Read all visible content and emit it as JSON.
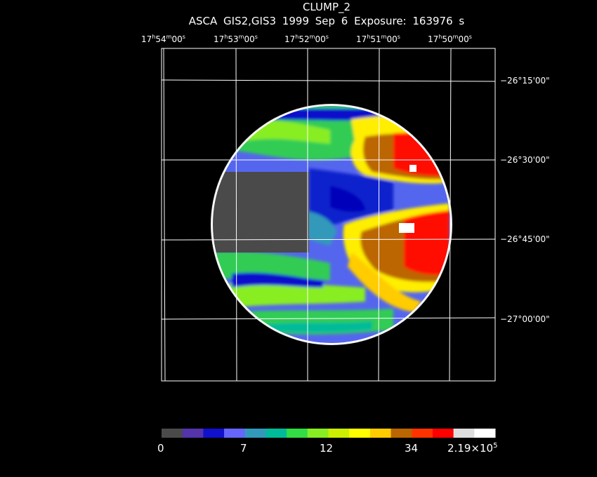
{
  "title": "CLUMP_2",
  "subtitle": "ASCA GIS2,GIS3   1999 Sep  6    Exposure: 163976 s",
  "ra_ticks": [
    {
      "h": "17",
      "m": "54",
      "s": "00"
    },
    {
      "h": "17",
      "m": "53",
      "s": "00"
    },
    {
      "h": "17",
      "m": "52",
      "s": "00"
    },
    {
      "h": "17",
      "m": "51",
      "s": "00"
    },
    {
      "h": "17",
      "m": "50",
      "s": "00"
    }
  ],
  "dec_ticks": [
    "−26°15'00\"",
    "−26°30'00\"",
    "−26°45'00\"",
    "−27°00'00\""
  ],
  "colorbar": {
    "colors": [
      "#4a4a4a",
      "#5533aa",
      "#1111cc",
      "#6666ff",
      "#3399bb",
      "#00bb99",
      "#33dd44",
      "#88ee22",
      "#ccee00",
      "#ffff00",
      "#ffcc00",
      "#bb6600",
      "#ff3300",
      "#ff0000",
      "#dddddd",
      "#ffffff"
    ],
    "labels": {
      "l0": "0",
      "l1": "7",
      "l2": "12",
      "l3": "34",
      "l4_base": "2.19×10",
      "l4_exp": "5"
    }
  }
}
